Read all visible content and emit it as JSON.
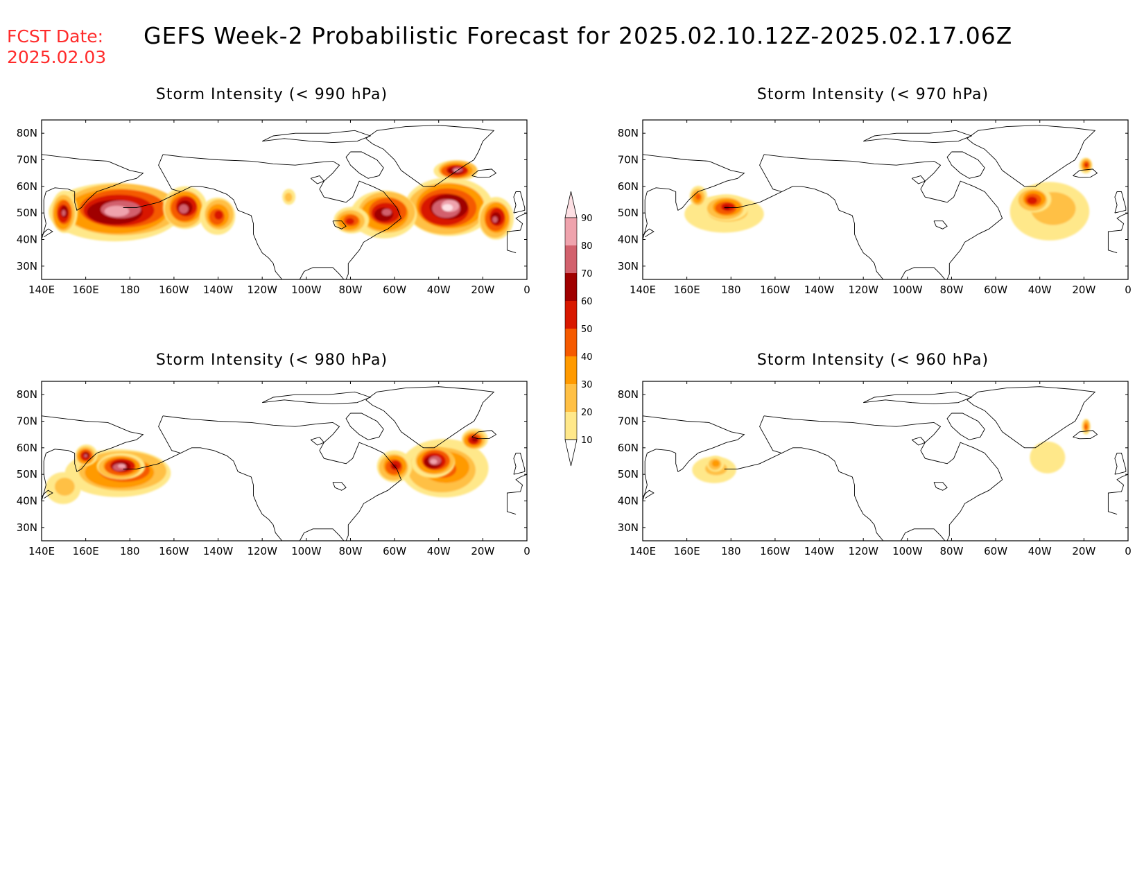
{
  "header": {
    "fcst_label": "FCST Date:",
    "fcst_date": "2025.02.03",
    "title": "GEFS Week-2 Probabilistic Forecast for 2025.02.10.12Z-2025.02.17.06Z"
  },
  "axes": {
    "lon_labels": [
      "140E",
      "160E",
      "180",
      "160W",
      "140W",
      "120W",
      "100W",
      "80W",
      "60W",
      "40W",
      "20W",
      "0"
    ],
    "lat_labels": [
      "80N",
      "70N",
      "60N",
      "50N",
      "40N",
      "30N"
    ]
  },
  "colorbar": {
    "levels": [
      "10",
      "20",
      "30",
      "40",
      "50",
      "60",
      "70",
      "80",
      "90"
    ],
    "colors": [
      "#fff6c0",
      "#ffe88a",
      "#ffc045",
      "#ff9a00",
      "#f55a00",
      "#d81800",
      "#a00000",
      "#d2616d",
      "#efa3ad",
      "#fde0e4"
    ]
  },
  "panels": [
    {
      "id": "p990",
      "title": "Storm Intensity (< 990 hPa)",
      "blobs": [
        {
          "lon": 175,
          "lat": 51,
          "rx": 30,
          "ry": 11,
          "p": 88
        },
        {
          "lon": 205,
          "lat": 52,
          "rx": 10,
          "ry": 8,
          "p": 78
        },
        {
          "lon": 150,
          "lat": 50,
          "rx": 6,
          "ry": 8,
          "p": 72
        },
        {
          "lon": 220,
          "lat": 49,
          "rx": 8,
          "ry": 7,
          "p": 55
        },
        {
          "lon": 324,
          "lat": 52,
          "rx": 20,
          "ry": 11,
          "p": 90
        },
        {
          "lon": 296,
          "lat": 50,
          "rx": 15,
          "ry": 9,
          "p": 72
        },
        {
          "lon": 346,
          "lat": 48,
          "rx": 8,
          "ry": 8,
          "p": 72
        },
        {
          "lon": 280,
          "lat": 47,
          "rx": 8,
          "ry": 5,
          "p": 55
        },
        {
          "lon": 328,
          "lat": 66,
          "rx": 10,
          "ry": 4,
          "p": 80
        },
        {
          "lon": 252,
          "lat": 56,
          "rx": 3,
          "ry": 3,
          "p": 25
        }
      ]
    },
    {
      "id": "p970",
      "title": "Storm Intensity (< 970 hPa)",
      "blobs": [
        {
          "lon": 178,
          "lat": 50,
          "rx": 18,
          "ry": 7,
          "p": 22
        },
        {
          "lon": 178,
          "lat": 52,
          "rx": 10,
          "ry": 5,
          "p": 60
        },
        {
          "lon": 165,
          "lat": 56,
          "rx": 4,
          "ry": 4,
          "p": 45
        },
        {
          "lon": 325,
          "lat": 51,
          "rx": 18,
          "ry": 11,
          "p": 25
        },
        {
          "lon": 317,
          "lat": 55,
          "rx": 8,
          "ry": 5,
          "p": 58
        },
        {
          "lon": 341,
          "lat": 68,
          "rx": 3,
          "ry": 3,
          "p": 55
        }
      ]
    },
    {
      "id": "p980",
      "title": "Storm Intensity (< 980 hPa)",
      "blobs": [
        {
          "lon": 176,
          "lat": 51,
          "rx": 24,
          "ry": 9,
          "p": 60
        },
        {
          "lon": 176,
          "lat": 53,
          "rx": 11,
          "ry": 5,
          "p": 85
        },
        {
          "lon": 160,
          "lat": 57,
          "rx": 5,
          "ry": 4,
          "p": 72
        },
        {
          "lon": 150,
          "lat": 45,
          "rx": 8,
          "ry": 6,
          "p": 25
        },
        {
          "lon": 322,
          "lat": 52,
          "rx": 20,
          "ry": 11,
          "p": 45
        },
        {
          "lon": 318,
          "lat": 55,
          "rx": 10,
          "ry": 6,
          "p": 85
        },
        {
          "lon": 300,
          "lat": 53,
          "rx": 8,
          "ry": 6,
          "p": 60
        },
        {
          "lon": 336,
          "lat": 63,
          "rx": 6,
          "ry": 4,
          "p": 68
        }
      ]
    },
    {
      "id": "p960",
      "title": "Storm Intensity (< 960 hPa)",
      "blobs": [
        {
          "lon": 173,
          "lat": 52,
          "rx": 10,
          "ry": 5,
          "p": 22
        },
        {
          "lon": 173,
          "lat": 54,
          "rx": 4,
          "ry": 3,
          "p": 38
        },
        {
          "lon": 323,
          "lat": 56,
          "rx": 8,
          "ry": 6,
          "p": 18
        },
        {
          "lon": 341,
          "lat": 68,
          "rx": 2,
          "ry": 3,
          "p": 48
        }
      ]
    }
  ]
}
